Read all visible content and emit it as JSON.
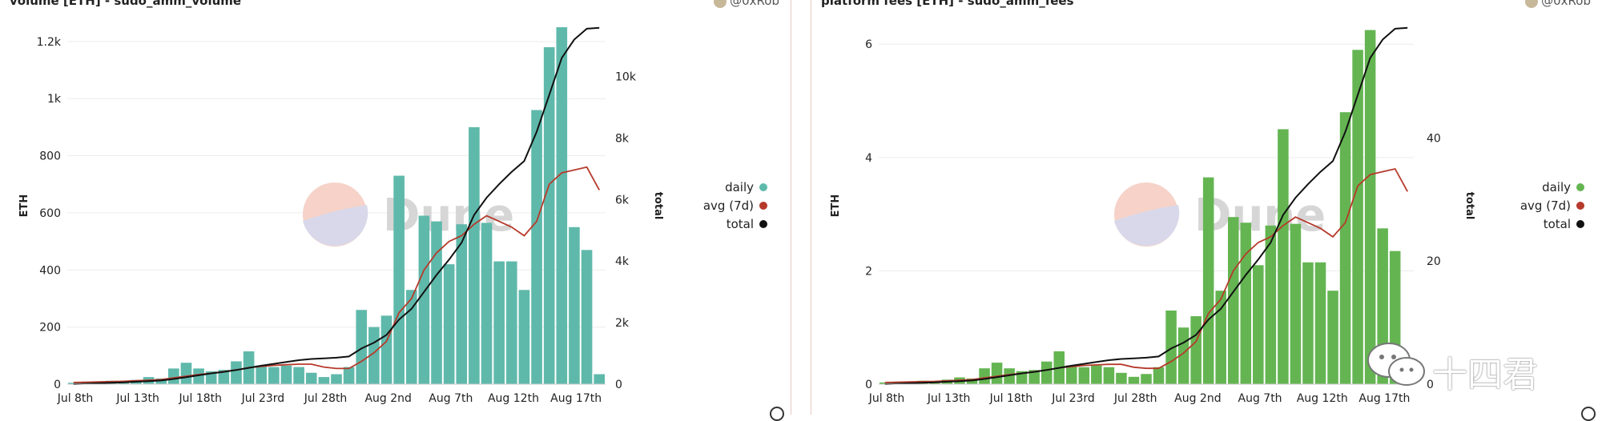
{
  "panels": [
    {
      "title": "volume [ETH] - sudo_amm_volume",
      "author": "@0xRob",
      "watermark": "Dune",
      "chart_data": {
        "type": "bar+line",
        "ylabel": "ETH",
        "y2label": "total",
        "ylim": [
          0,
          1250
        ],
        "y2lim": [
          0,
          11600
        ],
        "yticks": [
          0,
          200,
          400,
          600,
          800,
          1000,
          1200
        ],
        "ytick_labels": [
          "0",
          "200",
          "400",
          "600",
          "800",
          "1k",
          "1.2k"
        ],
        "y2ticks": [
          0,
          2000,
          4000,
          6000,
          8000,
          10000
        ],
        "y2tick_labels": [
          "0",
          "2k",
          "4k",
          "6k",
          "8k",
          "10k"
        ],
        "x_tick_labels": [
          "Jul 8th",
          "Jul 13th",
          "Jul 18th",
          "Jul 23rd",
          "Jul 28th",
          "Aug 2nd",
          "Aug 7th",
          "Aug 12th",
          "Aug 17th"
        ],
        "x_tick_index": [
          0,
          5,
          10,
          15,
          20,
          25,
          30,
          35,
          40
        ],
        "legend": [
          "daily",
          "avg (7d)",
          "total"
        ],
        "legend_position": "right",
        "colors": {
          "daily": "#5fb9ab",
          "avg": "#b63a2b",
          "total": "#111111"
        },
        "daily": [
          5,
          8,
          10,
          12,
          10,
          15,
          25,
          20,
          55,
          75,
          55,
          45,
          50,
          80,
          115,
          65,
          60,
          65,
          60,
          40,
          25,
          35,
          60,
          260,
          200,
          240,
          730,
          330,
          590,
          570,
          420,
          560,
          900,
          565,
          430,
          430,
          330,
          960,
          1180,
          1250,
          550,
          470,
          35
        ],
        "avg": [
          6,
          7,
          8,
          9,
          10,
          12,
          14,
          16,
          22,
          28,
          34,
          38,
          44,
          50,
          58,
          62,
          66,
          68,
          70,
          70,
          60,
          55,
          55,
          80,
          110,
          150,
          250,
          300,
          400,
          460,
          500,
          520,
          560,
          590,
          570,
          550,
          520,
          570,
          700,
          740,
          750,
          760,
          680
        ],
        "total": [
          0,
          15,
          30,
          45,
          60,
          80,
          100,
          120,
          170,
          230,
          290,
          350,
          400,
          460,
          530,
          600,
          660,
          720,
          780,
          820,
          840,
          860,
          900,
          1160,
          1350,
          1600,
          2100,
          2450,
          3000,
          3550,
          4050,
          4600,
          5500,
          6060,
          6500,
          6900,
          7250,
          8200,
          9400,
          10600,
          11200,
          11550,
          11580
        ]
      }
    },
    {
      "title": "platform fees [ETH] - sudo_amm_fees",
      "author": "@0xRob",
      "watermark": "Dune",
      "chart_data": {
        "type": "bar+line",
        "ylabel": "ETH",
        "y2label": "total",
        "ylim": [
          0,
          6.3
        ],
        "y2lim": [
          0,
          58
        ],
        "yticks": [
          0,
          2,
          4,
          6
        ],
        "ytick_labels": [
          "0",
          "2",
          "4",
          "6"
        ],
        "y2ticks": [
          0,
          20,
          40
        ],
        "y2tick_labels": [
          "0",
          "20",
          "40"
        ],
        "x_tick_labels": [
          "Jul 8th",
          "Jul 13th",
          "Jul 18th",
          "Jul 23rd",
          "Jul 28th",
          "Aug 2nd",
          "Aug 7th",
          "Aug 12th",
          "Aug 17th"
        ],
        "x_tick_index": [
          0,
          5,
          10,
          15,
          20,
          25,
          30,
          35,
          40
        ],
        "legend": [
          "daily",
          "avg (7d)",
          "total"
        ],
        "legend_position": "right",
        "colors": {
          "daily": "#64b552",
          "avg": "#b63a2b",
          "total": "#111111"
        },
        "daily": [
          0.03,
          0.04,
          0.05,
          0.06,
          0.05,
          0.08,
          0.12,
          0.1,
          0.28,
          0.38,
          0.28,
          0.23,
          0.25,
          0.4,
          0.58,
          0.33,
          0.3,
          0.33,
          0.3,
          0.2,
          0.13,
          0.18,
          0.3,
          1.3,
          1.0,
          1.2,
          3.65,
          1.65,
          2.95,
          2.85,
          2.1,
          2.8,
          4.5,
          2.83,
          2.15,
          2.15,
          1.65,
          4.8,
          5.9,
          6.25,
          2.75,
          2.35,
          0.18
        ],
        "avg": [
          0.03,
          0.035,
          0.04,
          0.045,
          0.05,
          0.06,
          0.07,
          0.08,
          0.11,
          0.14,
          0.17,
          0.19,
          0.22,
          0.25,
          0.29,
          0.31,
          0.33,
          0.34,
          0.35,
          0.35,
          0.3,
          0.28,
          0.28,
          0.4,
          0.55,
          0.75,
          1.25,
          1.5,
          2.0,
          2.3,
          2.5,
          2.6,
          2.8,
          2.95,
          2.85,
          2.75,
          2.6,
          2.85,
          3.5,
          3.7,
          3.75,
          3.8,
          3.4
        ],
        "total": [
          0,
          0.08,
          0.15,
          0.23,
          0.3,
          0.4,
          0.5,
          0.6,
          0.85,
          1.15,
          1.45,
          1.75,
          2.0,
          2.3,
          2.65,
          3.0,
          3.3,
          3.6,
          3.9,
          4.1,
          4.2,
          4.3,
          4.5,
          5.8,
          6.75,
          8.0,
          10.5,
          12.25,
          15.0,
          17.75,
          20.25,
          23.0,
          27.5,
          30.3,
          32.5,
          34.5,
          36.25,
          41.0,
          47.0,
          53.0,
          56.0,
          57.75,
          57.9
        ]
      }
    }
  ],
  "overlay_watermark": {
    "text": "十四君",
    "icon": "wechat-icon"
  }
}
